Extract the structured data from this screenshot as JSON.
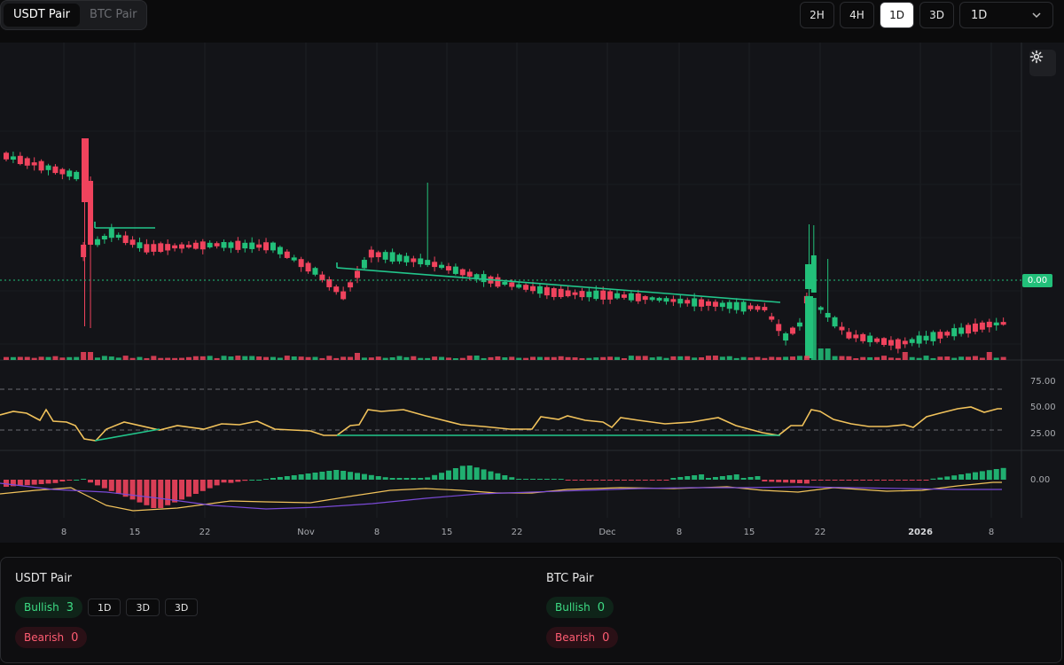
{
  "pair_toggle": {
    "items": [
      {
        "label": "USDT Pair",
        "active": true
      },
      {
        "label": "BTC Pair",
        "active": false
      }
    ]
  },
  "timeframes": {
    "buttons": [
      {
        "label": "2H",
        "active": false
      },
      {
        "label": "4H",
        "active": false
      },
      {
        "label": "1D",
        "active": true
      },
      {
        "label": "3D",
        "active": false
      }
    ],
    "select_value": "1D"
  },
  "chart": {
    "price_label": "0.00",
    "x_ticks": [
      "8",
      "15",
      "22",
      "Nov",
      "8",
      "15",
      "22",
      "Dec",
      "8",
      "15",
      "22",
      "2026",
      "8"
    ],
    "rsi_ticks": [
      "75.00",
      "50.00",
      "25.00"
    ],
    "macd_tick": "0.00",
    "colors": {
      "bull": "#22c07a",
      "bear": "#f0435d",
      "rsi": "#f1c25b",
      "signal": "#7a4ad6",
      "divergence": "#22c58b"
    }
  },
  "summary": {
    "usdt": {
      "title": "USDT Pair",
      "bullish_label": "Bullish",
      "bullish_count": "3",
      "bearish_label": "Bearish",
      "bearish_count": "0",
      "timeframes": [
        "1D",
        "3D",
        "3D"
      ]
    },
    "btc": {
      "title": "BTC Pair",
      "bullish_label": "Bullish",
      "bullish_count": "0",
      "bearish_label": "Bearish",
      "bearish_count": "0"
    }
  }
}
